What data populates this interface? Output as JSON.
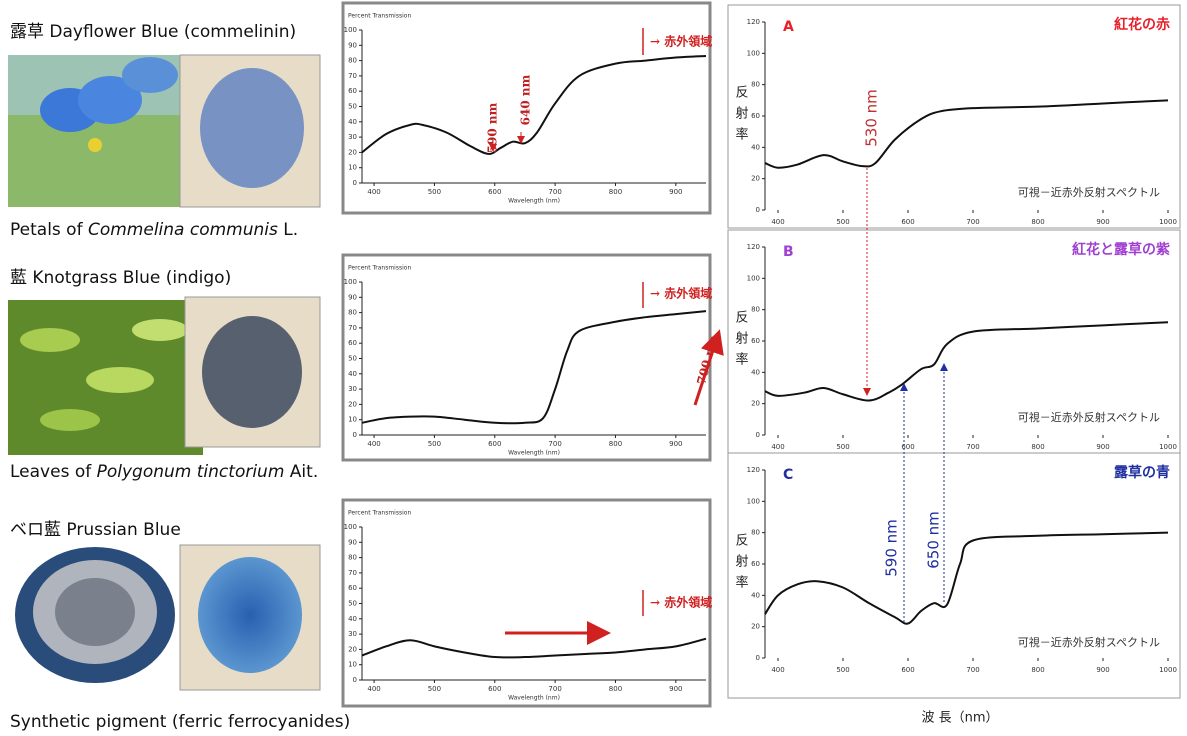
{
  "specimens": [
    {
      "heading": "露草 Dayflower Blue (commelinin)",
      "caption": [
        "Petals of ",
        "Commelina communis",
        " L."
      ]
    },
    {
      "heading": "藍 Knotgrass Blue (indigo)",
      "caption": [
        "Leaves of ",
        "Polygonum tinctorium",
        " Ait."
      ]
    },
    {
      "heading": "ベロ藍 Prussian Blue",
      "caption": [
        "Synthetic pigment (ferric ferrocyanides)"
      ]
    }
  ],
  "chart_data": [
    {
      "type": "line",
      "title": "Percent Transmission",
      "x_label": "Wavelength (nm)",
      "color": "#111111",
      "x": [
        380,
        420,
        460,
        480,
        520,
        560,
        590,
        610,
        630,
        650,
        670,
        700,
        740,
        800,
        850,
        900,
        950
      ],
      "values": [
        20,
        32,
        38,
        38,
        33,
        24,
        19,
        23,
        27,
        26,
        33,
        52,
        70,
        78,
        80,
        82,
        83
      ],
      "xlim": [
        380,
        950
      ],
      "ylim": [
        0,
        100
      ],
      "xticks": [
        400,
        500,
        600,
        700,
        800,
        900
      ],
      "yticks": [
        0,
        10,
        20,
        30,
        40,
        50,
        60,
        70,
        80,
        90,
        100
      ],
      "annotations": [
        "590 nm",
        "640 nm",
        "→ 赤外領域"
      ]
    },
    {
      "type": "line",
      "title": "Percent Transmission",
      "x_label": "Wavelength (nm)",
      "color": "#111111",
      "x": [
        380,
        420,
        460,
        500,
        550,
        600,
        650,
        680,
        700,
        720,
        740,
        800,
        850,
        900,
        950
      ],
      "values": [
        8,
        11,
        12,
        12,
        10,
        8,
        8,
        11,
        30,
        55,
        68,
        74,
        77,
        79,
        81
      ],
      "xlim": [
        380,
        950
      ],
      "ylim": [
        0,
        100
      ],
      "xticks": [
        400,
        500,
        600,
        700,
        800,
        900
      ],
      "yticks": [
        0,
        10,
        20,
        30,
        40,
        50,
        60,
        70,
        80,
        90,
        100
      ],
      "annotations": [
        "700 nm",
        "→ 赤外領域"
      ]
    },
    {
      "type": "line",
      "title": "Percent Transmission",
      "x_label": "Wavelength (nm)",
      "color": "#111111",
      "x": [
        380,
        420,
        460,
        500,
        550,
        600,
        650,
        700,
        750,
        800,
        850,
        900,
        950
      ],
      "values": [
        16,
        22,
        26,
        22,
        18,
        15,
        15,
        16,
        17,
        18,
        20,
        22,
        27
      ],
      "xlim": [
        380,
        950
      ],
      "ylim": [
        0,
        100
      ],
      "xticks": [
        400,
        500,
        600,
        700,
        800,
        900
      ],
      "yticks": [
        0,
        10,
        20,
        30,
        40,
        50,
        60,
        70,
        80,
        90,
        100
      ],
      "annotations": [
        "→ 赤外領域"
      ]
    },
    {
      "type": "line",
      "panel": "A",
      "title": "紅花の赤",
      "title_color": "#e8202a",
      "y_label": "反射率",
      "note": "可視－近赤外反射スペクトル",
      "color": "#111111",
      "x": [
        380,
        400,
        430,
        470,
        500,
        530,
        550,
        580,
        620,
        650,
        700,
        800,
        900,
        1000
      ],
      "values": [
        30,
        27,
        29,
        35,
        31,
        28,
        30,
        45,
        58,
        63,
        65,
        66,
        68,
        70
      ],
      "xlim": [
        380,
        1000
      ],
      "ylim": [
        0,
        120
      ],
      "xticks": [
        400,
        500,
        600,
        700,
        800,
        900,
        1000
      ],
      "yticks": [
        0,
        20,
        40,
        60,
        80,
        100,
        120
      ],
      "annotations": [
        "530 nm"
      ]
    },
    {
      "type": "line",
      "panel": "B",
      "title": "紅花と露草の紫",
      "title_color": "#a040d0",
      "y_label": "反射率",
      "note": "可視－近赤外反射スペクトル",
      "color": "#111111",
      "x": [
        380,
        400,
        440,
        470,
        500,
        540,
        570,
        590,
        620,
        640,
        660,
        700,
        800,
        900,
        1000
      ],
      "values": [
        28,
        25,
        27,
        30,
        26,
        22,
        27,
        32,
        42,
        45,
        58,
        66,
        68,
        70,
        72
      ],
      "xlim": [
        380,
        1000
      ],
      "ylim": [
        0,
        120
      ],
      "xticks": [
        400,
        500,
        600,
        700,
        800,
        900,
        1000
      ],
      "yticks": [
        0,
        20,
        40,
        60,
        80,
        100,
        120
      ],
      "annotations": []
    },
    {
      "type": "line",
      "panel": "C",
      "title": "露草の青",
      "title_color": "#2030a0",
      "y_label": "反射率",
      "note": "可視－近赤外反射スペクトル",
      "x_label": "波 長（nm）",
      "color": "#111111",
      "x": [
        380,
        400,
        430,
        460,
        500,
        540,
        580,
        600,
        620,
        640,
        660,
        680,
        700,
        800,
        900,
        1000
      ],
      "values": [
        28,
        40,
        47,
        49,
        45,
        35,
        26,
        22,
        30,
        35,
        34,
        60,
        75,
        78,
        79,
        80
      ],
      "xlim": [
        380,
        1000
      ],
      "ylim": [
        0,
        120
      ],
      "xticks": [
        400,
        500,
        600,
        700,
        800,
        900,
        1000
      ],
      "yticks": [
        0,
        20,
        40,
        60,
        80,
        100,
        120
      ],
      "annotations": [
        "590 nm",
        "650 nm"
      ]
    }
  ]
}
